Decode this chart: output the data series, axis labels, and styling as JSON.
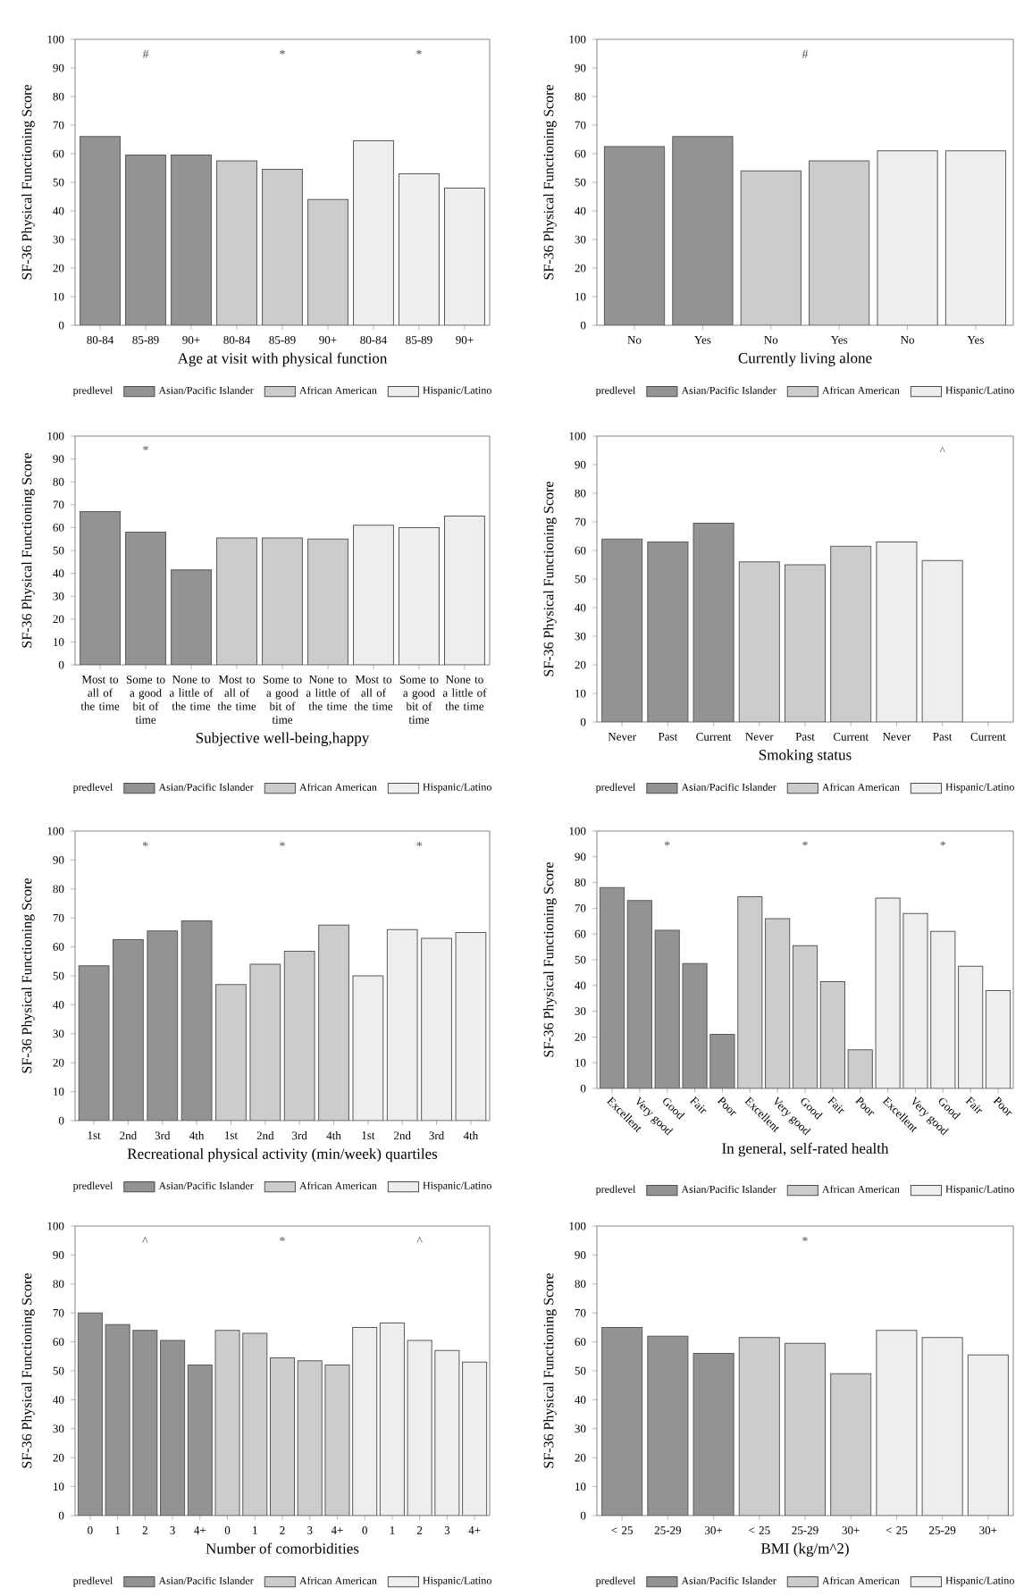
{
  "chart_data": [
    {
      "type": "bar",
      "xlabel": "Age at visit with physical function",
      "ylabel": "SF-36 Physical Functioning Score",
      "legend_title": "predlevel",
      "legend": "bottom",
      "ylim": [
        0,
        100
      ],
      "yticks": [
        0,
        10,
        20,
        30,
        40,
        50,
        60,
        70,
        80,
        90,
        100
      ],
      "categories": [
        "80-84",
        "85-89",
        "90+",
        "80-84",
        "85-89",
        "90+",
        "80-84",
        "85-89",
        "90+"
      ],
      "series": [
        {
          "name": "Asian/Pacific Islander",
          "color": "#939393",
          "values": [
            66,
            59.5,
            59.5,
            null,
            null,
            null,
            null,
            null,
            null
          ]
        },
        {
          "name": "African American",
          "color": "#cccccc",
          "values": [
            null,
            null,
            null,
            57.5,
            54.5,
            44,
            null,
            null,
            null
          ]
        },
        {
          "name": "Hispanic/Latino",
          "color": "#eeeeee",
          "values": [
            null,
            null,
            null,
            null,
            null,
            null,
            64.5,
            53,
            48
          ]
        }
      ],
      "annotations": [
        "#",
        "*",
        "*"
      ]
    },
    {
      "type": "bar",
      "xlabel": "Currently living alone",
      "ylabel": "SF-36 Physical Functioning Score",
      "legend_title": "predlevel",
      "legend": "bottom",
      "ylim": [
        0,
        100
      ],
      "yticks": [
        0,
        10,
        20,
        30,
        40,
        50,
        60,
        70,
        80,
        90,
        100
      ],
      "categories": [
        "No",
        "Yes",
        "No",
        "Yes",
        "No",
        "Yes"
      ],
      "series": [
        {
          "name": "Asian/Pacific Islander",
          "color": "#939393",
          "values": [
            62.5,
            66,
            null,
            null,
            null,
            null
          ]
        },
        {
          "name": "African American",
          "color": "#cccccc",
          "values": [
            null,
            null,
            54,
            57.5,
            null,
            null
          ]
        },
        {
          "name": "Hispanic/Latino",
          "color": "#eeeeee",
          "values": [
            null,
            null,
            null,
            null,
            61,
            61
          ]
        }
      ],
      "annotations": [
        "#"
      ]
    },
    {
      "type": "bar",
      "xlabel": "Subjective well-being,happy",
      "ylabel": "SF-36 Physical Functioning Score",
      "legend_title": "predlevel",
      "legend": "bottom",
      "ylim": [
        0,
        100
      ],
      "yticks": [
        0,
        10,
        20,
        30,
        40,
        50,
        60,
        70,
        80,
        90,
        100
      ],
      "categories": [
        "Most to all of the time",
        "Some to a good bit of time",
        "None to a little of the time",
        "Most to all of the time",
        "Some to a good bit of time",
        "None to a little of the time",
        "Most to all of the time",
        "Some to a good bit of time",
        "None to a little of the time"
      ],
      "series": [
        {
          "name": "Asian/Pacific Islander",
          "color": "#939393",
          "values": [
            67,
            58,
            41.5,
            null,
            null,
            null,
            null,
            null,
            null
          ]
        },
        {
          "name": "African American",
          "color": "#cccccc",
          "values": [
            null,
            null,
            null,
            55.5,
            55.5,
            55,
            null,
            null,
            null
          ]
        },
        {
          "name": "Hispanic/Latino",
          "color": "#eeeeee",
          "values": [
            null,
            null,
            null,
            null,
            null,
            null,
            61,
            60,
            65
          ]
        }
      ],
      "annotations": [
        "*"
      ]
    },
    {
      "type": "bar",
      "xlabel": "Smoking status",
      "ylabel": "SF-36 Physical Functioning Score",
      "legend_title": "predlevel",
      "legend": "bottom",
      "ylim": [
        0,
        100
      ],
      "yticks": [
        0,
        10,
        20,
        30,
        40,
        50,
        60,
        70,
        80,
        90,
        100
      ],
      "categories": [
        "Never",
        "Past",
        "Current",
        "Never",
        "Past",
        "Current",
        "Never",
        "Past",
        "Current"
      ],
      "series": [
        {
          "name": "Asian/Pacific Islander",
          "color": "#939393",
          "values": [
            64,
            63,
            69.5,
            null,
            null,
            null,
            null,
            null,
            null
          ]
        },
        {
          "name": "African American",
          "color": "#cccccc",
          "values": [
            null,
            null,
            null,
            56,
            55,
            61.5,
            null,
            null,
            null
          ]
        },
        {
          "name": "Hispanic/Latino",
          "color": "#eeeeee",
          "values": [
            null,
            null,
            null,
            null,
            null,
            null,
            63,
            56.5,
            null
          ]
        }
      ],
      "annotations": [
        "^"
      ]
    },
    {
      "type": "bar",
      "xlabel": "Recreational physical activity (min/week) quartiles",
      "ylabel": "SF-36 Physical Functioning Score",
      "legend_title": "predlevel",
      "legend": "bottom",
      "ylim": [
        0,
        100
      ],
      "yticks": [
        0,
        10,
        20,
        30,
        40,
        50,
        60,
        70,
        80,
        90,
        100
      ],
      "categories": [
        "1st",
        "2nd",
        "3rd",
        "4th",
        "1st",
        "2nd",
        "3rd",
        "4th",
        "1st",
        "2nd",
        "3rd",
        "4th"
      ],
      "series": [
        {
          "name": "Asian/Pacific Islander",
          "color": "#939393",
          "values": [
            53.5,
            62.5,
            65.5,
            69,
            null,
            null,
            null,
            null,
            null,
            null,
            null,
            null
          ]
        },
        {
          "name": "African American",
          "color": "#cccccc",
          "values": [
            null,
            null,
            null,
            null,
            47,
            54,
            58.5,
            67.5,
            null,
            null,
            null,
            null
          ]
        },
        {
          "name": "Hispanic/Latino",
          "color": "#eeeeee",
          "values": [
            null,
            null,
            null,
            null,
            null,
            null,
            null,
            null,
            50,
            66,
            63,
            65
          ]
        }
      ],
      "annotations": [
        "*",
        "*",
        "*"
      ]
    },
    {
      "type": "bar",
      "xlabel": "In general, self-rated health",
      "ylabel": "SF-36 Physical Functioning Score",
      "legend_title": "predlevel",
      "legend": "bottom",
      "ylim": [
        0,
        100
      ],
      "yticks": [
        0,
        10,
        20,
        30,
        40,
        50,
        60,
        70,
        80,
        90,
        100
      ],
      "categories": [
        "Excellent",
        "Very good",
        "Good",
        "Fair",
        "Poor",
        "Excellent",
        "Very good",
        "Good",
        "Fair",
        "Poor",
        "Excellent",
        "Very good",
        "Good",
        "Fair",
        "Poor"
      ],
      "series": [
        {
          "name": "Asian/Pacific Islander",
          "color": "#939393",
          "values": [
            78,
            73,
            61.5,
            48.5,
            21,
            null,
            null,
            null,
            null,
            null,
            null,
            null,
            null,
            null,
            null
          ]
        },
        {
          "name": "African American",
          "color": "#cccccc",
          "values": [
            null,
            null,
            null,
            null,
            null,
            74.5,
            66,
            55.5,
            41.5,
            15,
            null,
            null,
            null,
            null,
            null
          ]
        },
        {
          "name": "Hispanic/Latino",
          "color": "#eeeeee",
          "values": [
            null,
            null,
            null,
            null,
            null,
            null,
            null,
            null,
            null,
            null,
            74,
            68,
            61,
            47.5,
            38
          ]
        }
      ],
      "annotations": [
        "*",
        "*",
        "*"
      ]
    },
    {
      "type": "bar",
      "xlabel": "Number of comorbidities",
      "ylabel": "SF-36 Physical Functioning Score",
      "legend_title": "predlevel",
      "legend": "bottom",
      "ylim": [
        0,
        100
      ],
      "yticks": [
        0,
        10,
        20,
        30,
        40,
        50,
        60,
        70,
        80,
        90,
        100
      ],
      "categories": [
        "0",
        "1",
        "2",
        "3",
        "4+",
        "0",
        "1",
        "2",
        "3",
        "4+",
        "0",
        "1",
        "2",
        "3",
        "4+"
      ],
      "series": [
        {
          "name": "Asian/Pacific Islander",
          "color": "#939393",
          "values": [
            70,
            66,
            64,
            60.5,
            52,
            null,
            null,
            null,
            null,
            null,
            null,
            null,
            null,
            null,
            null
          ]
        },
        {
          "name": "African American",
          "color": "#cccccc",
          "values": [
            null,
            null,
            null,
            null,
            null,
            64,
            63,
            54.5,
            53.5,
            52,
            null,
            null,
            null,
            null,
            null
          ]
        },
        {
          "name": "Hispanic/Latino",
          "color": "#eeeeee",
          "values": [
            null,
            null,
            null,
            null,
            null,
            null,
            null,
            null,
            null,
            null,
            65,
            66.5,
            60.5,
            57,
            53
          ]
        }
      ],
      "annotations": [
        "^",
        "*",
        "^"
      ]
    },
    {
      "type": "bar",
      "xlabel": "BMI (kg/m^2)",
      "ylabel": "SF-36 Physical Functioning Score",
      "legend_title": "predlevel",
      "legend": "bottom",
      "ylim": [
        0,
        100
      ],
      "yticks": [
        0,
        10,
        20,
        30,
        40,
        50,
        60,
        70,
        80,
        90,
        100
      ],
      "categories": [
        "< 25",
        "25-29",
        "30+",
        "< 25",
        "25-29",
        "30+",
        "< 25",
        "25-29",
        "30+"
      ],
      "series": [
        {
          "name": "Asian/Pacific Islander",
          "color": "#939393",
          "values": [
            65,
            62,
            56,
            null,
            null,
            null,
            null,
            null,
            null
          ]
        },
        {
          "name": "African American",
          "color": "#cccccc",
          "values": [
            null,
            null,
            null,
            61.5,
            59.5,
            49,
            null,
            null,
            null
          ]
        },
        {
          "name": "Hispanic/Latino",
          "color": "#eeeeee",
          "values": [
            null,
            null,
            null,
            null,
            null,
            null,
            64,
            61.5,
            55.5
          ]
        }
      ],
      "annotations": [
        "*"
      ]
    }
  ]
}
